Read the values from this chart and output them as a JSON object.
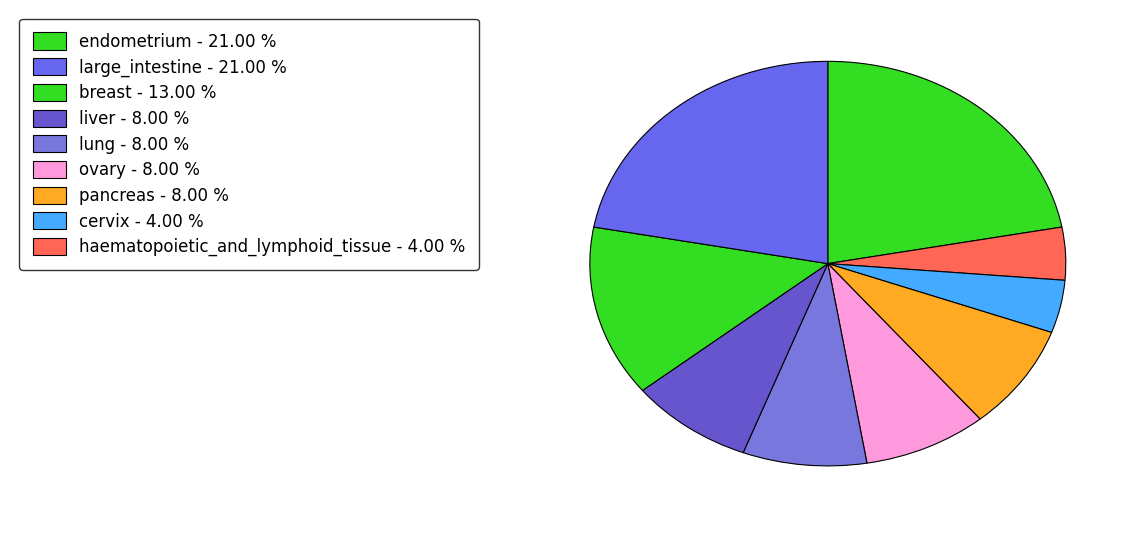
{
  "labels": [
    "endometrium - 21.00 %",
    "large_intestine - 21.00 %",
    "breast - 13.00 %",
    "liver - 8.00 %",
    "lung - 8.00 %",
    "ovary - 8.00 %",
    "pancreas - 8.00 %",
    "cervix - 4.00 %",
    "haematopoietic_and_lymphoid_tissue - 4.00 %"
  ],
  "values": [
    21,
    21,
    13,
    8,
    8,
    8,
    8,
    4,
    4
  ],
  "colors": [
    "#33dd22",
    "#6666ee",
    "#33dd22",
    "#6655cc",
    "#7777dd",
    "#ff99dd",
    "#ffaa22",
    "#44aaff",
    "#ff6655"
  ],
  "slice_order": [
    0,
    8,
    7,
    6,
    5,
    4,
    3,
    2,
    1
  ],
  "background_color": "#ffffff",
  "legend_fontsize": 12,
  "pie_startangle": 90
}
